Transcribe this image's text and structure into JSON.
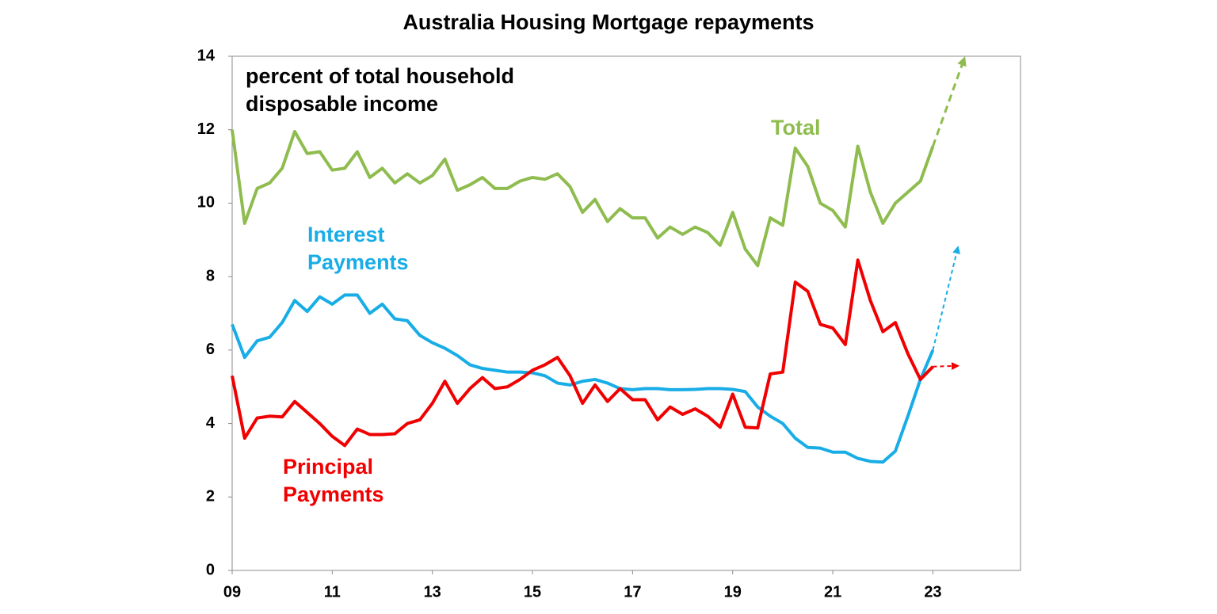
{
  "chart_data": {
    "type": "line",
    "title": "Australia Housing Mortgage repayments",
    "annotation": "percent of total household disposable income",
    "x": [
      9,
      9.25,
      9.5,
      9.75,
      10,
      10.25,
      10.5,
      10.75,
      11,
      11.25,
      11.5,
      11.75,
      12,
      12.25,
      12.5,
      12.75,
      13,
      13.25,
      13.5,
      13.75,
      14,
      14.25,
      14.5,
      14.75,
      15,
      15.25,
      15.5,
      15.75,
      16,
      16.25,
      16.5,
      16.75,
      17,
      17.25,
      17.5,
      17.75,
      18,
      18.25,
      18.5,
      18.75,
      19,
      19.25,
      19.5,
      19.75,
      20,
      20.25,
      20.5,
      20.75,
      21,
      21.25,
      21.5,
      21.75,
      22,
      22.25,
      22.5,
      22.75,
      23
    ],
    "series": [
      {
        "name": "Total",
        "color": "#8fbc4f",
        "values": [
          12.0,
          9.45,
          10.4,
          10.55,
          10.95,
          11.95,
          11.35,
          11.4,
          10.9,
          10.95,
          11.4,
          10.7,
          10.95,
          10.55,
          10.8,
          10.55,
          10.75,
          11.2,
          10.35,
          10.5,
          10.7,
          10.4,
          10.4,
          10.6,
          10.7,
          10.65,
          10.8,
          10.45,
          9.75,
          10.1,
          9.5,
          9.85,
          9.6,
          9.6,
          9.05,
          9.35,
          9.15,
          9.35,
          9.2,
          8.85,
          9.75,
          8.75,
          8.3,
          9.6,
          9.4,
          11.5,
          11.0,
          10.0,
          9.8,
          9.35,
          11.55,
          10.3,
          9.45,
          10.0,
          10.3,
          10.6,
          11.55
        ],
        "projection": {
          "x": [
            23,
            23.63
          ],
          "values": [
            11.55,
            13.95
          ]
        }
      },
      {
        "name": "Interest Payments",
        "color": "#18ade6",
        "values": [
          6.7,
          5.8,
          6.25,
          6.35,
          6.75,
          7.35,
          7.05,
          7.45,
          7.25,
          7.5,
          7.5,
          7.0,
          7.25,
          6.85,
          6.8,
          6.4,
          6.2,
          6.05,
          5.85,
          5.6,
          5.5,
          5.45,
          5.4,
          5.4,
          5.38,
          5.3,
          5.1,
          5.05,
          5.15,
          5.2,
          5.1,
          4.95,
          4.92,
          4.95,
          4.95,
          4.92,
          4.92,
          4.93,
          4.95,
          4.95,
          4.93,
          4.87,
          4.45,
          4.2,
          4.0,
          3.6,
          3.35,
          3.33,
          3.22,
          3.22,
          3.05,
          2.97,
          2.95,
          3.25,
          4.2,
          5.2,
          6.0
        ],
        "projection": {
          "x": [
            23,
            23.5
          ],
          "values": [
            6.0,
            8.8
          ]
        }
      },
      {
        "name": "Principal Payments",
        "color": "#f00000",
        "values": [
          5.3,
          3.6,
          4.15,
          4.2,
          4.18,
          4.6,
          4.3,
          4.0,
          3.65,
          3.4,
          3.85,
          3.7,
          3.7,
          3.72,
          4.0,
          4.1,
          4.55,
          5.15,
          4.55,
          4.95,
          5.25,
          4.95,
          5.0,
          5.2,
          5.45,
          5.6,
          5.8,
          5.3,
          4.55,
          5.05,
          4.6,
          4.95,
          4.65,
          4.65,
          4.1,
          4.45,
          4.25,
          4.4,
          4.2,
          3.9,
          4.8,
          3.9,
          3.88,
          5.35,
          5.4,
          7.85,
          7.6,
          6.7,
          6.6,
          6.15,
          8.45,
          7.35,
          6.5,
          6.75,
          5.9,
          5.2,
          5.55
        ],
        "projection": {
          "x": [
            23,
            23.5
          ],
          "values": [
            5.55,
            5.57
          ]
        }
      }
    ],
    "xlim": [
      9,
      24.75
    ],
    "xticks": [
      {
        "value": 9,
        "label": "09"
      },
      {
        "value": 11,
        "label": "11"
      },
      {
        "value": 13,
        "label": "13"
      },
      {
        "value": 15,
        "label": "15"
      },
      {
        "value": 17,
        "label": "17"
      },
      {
        "value": 19,
        "label": "19"
      },
      {
        "value": 21,
        "label": "21"
      },
      {
        "value": 23,
        "label": "23"
      }
    ],
    "ylim": [
      0,
      14
    ],
    "yticks": [
      0,
      2,
      4,
      6,
      8,
      10,
      12,
      14
    ],
    "grid": false
  }
}
